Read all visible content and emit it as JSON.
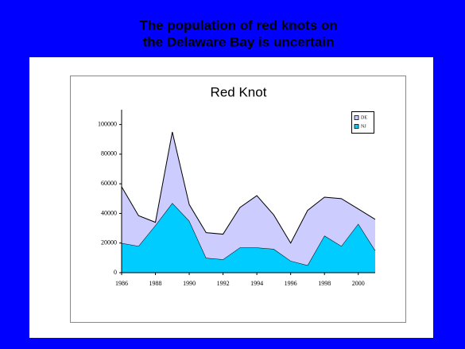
{
  "slide_title": [
    "The population of red knots on",
    "the Delaware Bay is uncertain"
  ],
  "chart_data": {
    "type": "stacked-area",
    "title": "Red Knot",
    "x": [
      1986,
      1987,
      1988,
      1989,
      1990,
      1991,
      1992,
      1993,
      1994,
      1995,
      1996,
      1997,
      1998,
      1999,
      2000,
      2001
    ],
    "series": [
      {
        "name": "DE",
        "color": "#ccccff",
        "values": [
          38000,
          20500,
          2000,
          48000,
          11000,
          17000,
          17000,
          27000,
          35000,
          23000,
          12000,
          37000,
          26000,
          32000,
          10000,
          21000
        ]
      },
      {
        "name": "NJ",
        "color": "#00ccff",
        "values": [
          20000,
          18000,
          32000,
          47000,
          35000,
          10000,
          9000,
          17000,
          17000,
          16000,
          8000,
          5000,
          25000,
          18000,
          33000,
          15000
        ]
      }
    ],
    "xlim": [
      1986,
      2001
    ],
    "xticks": [
      1986,
      1988,
      1990,
      1992,
      1994,
      1996,
      1998,
      2000
    ],
    "ylim": [
      0,
      110000
    ],
    "yticks": [
      0,
      20000,
      40000,
      60000,
      80000,
      100000
    ],
    "grid": false,
    "legend": "top-right"
  }
}
